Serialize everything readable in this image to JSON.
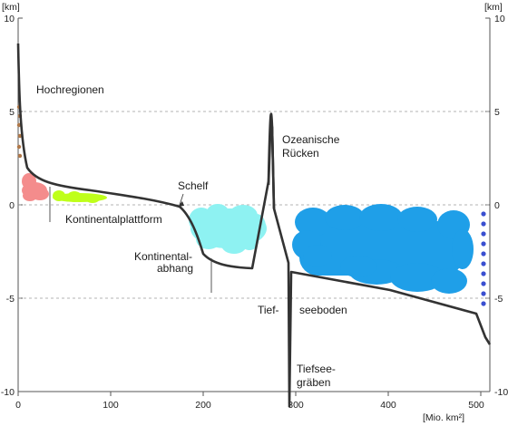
{
  "diagram": {
    "y_unit": "[km]",
    "x_unit": "[Mio. km²]",
    "y_ticks": [
      "10",
      "5",
      "0",
      "-5",
      "-10"
    ],
    "x_ticks": [
      "0",
      "100",
      "200",
      "300",
      "400",
      "500"
    ],
    "labels": {
      "hochregionen": "Hochregionen",
      "ozeanische_1": "Ozeanische",
      "ozeanische_2": "Rücken",
      "schelf": "Schelf",
      "kontinentalplattform": "Kontinentalplattform",
      "kontinentalabhang_1": "Kontinental-",
      "kontinentalabhang_2": "abhang",
      "tief": "Tief-",
      "seeboden": "seeboden",
      "tiefsee_1": "Tiefsee-",
      "tiefsee_2": "gräben"
    },
    "colors": {
      "profile": "#333333",
      "grid": "#999999",
      "brown": "#b07848",
      "pink": "#f48c8c",
      "lime": "#bfff1a",
      "cyan": "#8ef2f2",
      "ocean": "#1f9fe8",
      "blue_dots": "#3a4fd0"
    }
  }
}
